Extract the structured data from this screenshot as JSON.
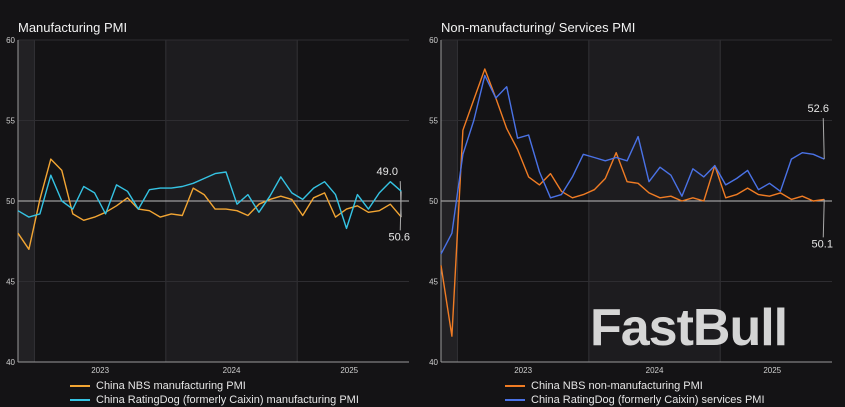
{
  "chart_data": [
    {
      "type": "line",
      "title": "Manufacturing PMI",
      "x_start": "2022-11",
      "x_end": "2025-10",
      "frequency": "monthly",
      "xticks": [
        "2023",
        "2024",
        "2025"
      ],
      "yticks": [
        "40",
        "45",
        "50",
        "55",
        "60"
      ],
      "ylim": [
        40,
        60
      ],
      "reference_line": 50,
      "grid": true,
      "legend_position": "bottom",
      "series": [
        {
          "name": "China NBS manufacturing PMI",
          "color": "#f2a533",
          "values": [
            48.0,
            47.0,
            50.1,
            52.6,
            51.9,
            49.2,
            48.8,
            49.0,
            49.3,
            49.7,
            50.2,
            49.5,
            49.4,
            49.0,
            49.2,
            49.1,
            50.8,
            50.4,
            49.5,
            49.5,
            49.4,
            49.1,
            49.8,
            50.1,
            50.3,
            50.1,
            49.1,
            50.2,
            50.5,
            49.0,
            49.5,
            49.7,
            49.3,
            49.4,
            49.8,
            49.0
          ],
          "end_label": "49.0"
        },
        {
          "name": "China RatingDog (formerly Caixin) manufacturing PMI",
          "color": "#35c3e3",
          "values": [
            49.4,
            49.0,
            49.2,
            51.6,
            50.0,
            49.5,
            50.9,
            50.5,
            49.2,
            51.0,
            50.6,
            49.5,
            50.7,
            50.8,
            50.8,
            50.9,
            51.1,
            51.4,
            51.7,
            51.8,
            49.8,
            50.4,
            49.3,
            50.3,
            51.5,
            50.5,
            50.1,
            50.8,
            51.2,
            50.4,
            48.3,
            50.4,
            49.5,
            50.5,
            51.2,
            50.6
          ],
          "end_label": "50.6"
        }
      ]
    },
    {
      "type": "line",
      "title": "Non-manufacturing/ Services PMI",
      "x_start": "2022-11",
      "x_end": "2025-10",
      "frequency": "monthly",
      "xticks": [
        "2023",
        "2024",
        "2025"
      ],
      "yticks": [
        "40",
        "45",
        "50",
        "55",
        "60"
      ],
      "ylim": [
        40,
        60
      ],
      "reference_line": 50,
      "grid": true,
      "legend_position": "bottom",
      "series": [
        {
          "name": "China NBS non-manufacturing PMI",
          "color": "#f07c24",
          "values": [
            46.0,
            41.6,
            54.4,
            56.3,
            58.2,
            56.4,
            54.5,
            53.2,
            51.5,
            51.0,
            51.7,
            50.6,
            50.2,
            50.4,
            50.7,
            51.4,
            53.0,
            51.2,
            51.1,
            50.5,
            50.2,
            50.3,
            50.0,
            50.2,
            50.0,
            52.2,
            50.2,
            50.4,
            50.8,
            50.4,
            50.3,
            50.5,
            50.1,
            50.3,
            50.0,
            50.1
          ],
          "end_label": "50.1"
        },
        {
          "name": "China RatingDog (formerly Caixin) services PMI",
          "color": "#4a72e6",
          "values": [
            46.7,
            48.0,
            52.9,
            55.0,
            57.8,
            56.4,
            57.1,
            53.9,
            54.1,
            51.8,
            50.2,
            50.4,
            51.5,
            52.9,
            52.7,
            52.5,
            52.7,
            52.5,
            54.0,
            51.2,
            52.1,
            51.6,
            50.3,
            52.0,
            51.5,
            52.2,
            51.0,
            51.4,
            51.9,
            50.7,
            51.1,
            50.6,
            52.6,
            53.0,
            52.9,
            52.6
          ],
          "end_label": "52.6"
        }
      ]
    }
  ],
  "watermark": "FastBull"
}
